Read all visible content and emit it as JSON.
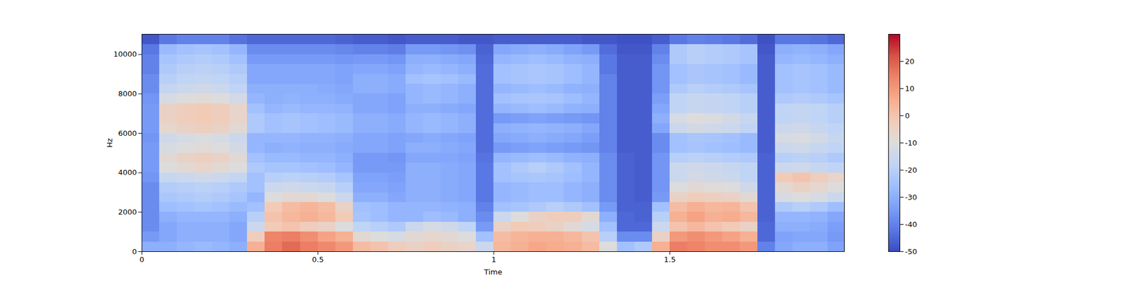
{
  "chart_data": {
    "type": "heatmap",
    "xlabel": "Time",
    "ylabel": "Hz",
    "xlim": [
      0,
      1.996
    ],
    "xticks": [
      0,
      0.5,
      1,
      1.5
    ],
    "ylim": [
      0,
      11025
    ],
    "yticks": [
      0,
      2000,
      4000,
      6000,
      8000,
      10000
    ],
    "x_bins": [
      0,
      0.05,
      0.1,
      0.15,
      0.2,
      0.25,
      0.3,
      0.35,
      0.4,
      0.45,
      0.5,
      0.55,
      0.6,
      0.65,
      0.7,
      0.75,
      0.8,
      0.85,
      0.9,
      0.95,
      1.0,
      1.05,
      1.1,
      1.15,
      1.2,
      1.25,
      1.3,
      1.35,
      1.4,
      1.45,
      1.5,
      1.55,
      1.6,
      1.65,
      1.7,
      1.75,
      1.8,
      1.85,
      1.9,
      1.95,
      1.996
    ],
    "y_bins": [
      0,
      500,
      1000,
      1500,
      2000,
      2500,
      3000,
      3500,
      4000,
      4500,
      5000,
      5500,
      6000,
      6500,
      7000,
      7500,
      8000,
      8500,
      9000,
      9500,
      10000,
      10500,
      11025
    ],
    "cells": [
      [
        -30,
        -30,
        -28,
        -27,
        -28,
        -30,
        5,
        15,
        18,
        15,
        13,
        10,
        2,
        0,
        -3,
        -5,
        -3,
        -5,
        -6,
        -15,
        3,
        5,
        7,
        6,
        5,
        2,
        -10,
        -25,
        -22,
        5,
        15,
        14,
        12,
        12,
        10,
        -40,
        -32,
        -30,
        -30,
        -33
      ],
      [
        -35,
        -32,
        -30,
        -30,
        -30,
        -32,
        -3,
        14,
        15,
        12,
        8,
        5,
        -8,
        -10,
        -12,
        -8,
        -7,
        -8,
        -10,
        -25,
        2,
        4,
        5,
        5,
        3,
        0,
        -20,
        -38,
        -38,
        -5,
        10,
        12,
        10,
        8,
        5,
        -45,
        -33,
        -32,
        -32,
        -35
      ],
      [
        -38,
        -32,
        -30,
        -30,
        -30,
        -32,
        -15,
        -2,
        0,
        -3,
        -5,
        -10,
        -18,
        -20,
        -22,
        -15,
        -12,
        -14,
        -18,
        -35,
        -5,
        -2,
        -3,
        -5,
        -8,
        -12,
        -25,
        -45,
        -45,
        -15,
        0,
        3,
        0,
        -2,
        -5,
        -45,
        -30,
        -30,
        -31,
        -34
      ],
      [
        -38,
        -30,
        -28,
        -28,
        -28,
        -30,
        -20,
        0,
        3,
        5,
        3,
        -2,
        -24,
        -26,
        -28,
        -28,
        -26,
        -27,
        -30,
        -38,
        -15,
        -10,
        -5,
        -3,
        -3,
        -8,
        -30,
        -45,
        -46,
        -20,
        5,
        8,
        5,
        6,
        3,
        -46,
        -28,
        -28,
        -29,
        -32
      ],
      [
        -38,
        -26,
        -25,
        -24,
        -25,
        -27,
        -25,
        -2,
        2,
        4,
        2,
        -5,
        -25,
        -26,
        -28,
        -28,
        -28,
        -29,
        -30,
        -40,
        -25,
        -24,
        -22,
        -20,
        -22,
        -25,
        -35,
        -46,
        -46,
        -25,
        2,
        5,
        3,
        4,
        0,
        -46,
        -22,
        -20,
        -22,
        -26
      ],
      [
        -38,
        -23,
        -22,
        -21,
        -22,
        -24,
        -28,
        -10,
        -8,
        -8,
        -10,
        -15,
        -30,
        -30,
        -32,
        -30,
        -30,
        -31,
        -32,
        -42,
        -28,
        -27,
        -26,
        -26,
        -28,
        -30,
        -38,
        -46,
        -47,
        -35,
        -5,
        -3,
        -4,
        -5,
        -8,
        -46,
        -12,
        -10,
        -12,
        -15
      ],
      [
        -38,
        -21,
        -20,
        -19,
        -20,
        -22,
        -25,
        -15,
        -14,
        -15,
        -16,
        -20,
        -32,
        -32,
        -33,
        -30,
        -30,
        -31,
        -32,
        -42,
        -28,
        -27,
        -26,
        -26,
        -28,
        -30,
        -38,
        -46,
        -47,
        -36,
        -10,
        -8,
        -9,
        -10,
        -14,
        -46,
        -8,
        -5,
        -7,
        -10
      ],
      [
        -36,
        -16,
        -15,
        -14,
        -15,
        -17,
        -25,
        -20,
        -19,
        -20,
        -21,
        -24,
        -33,
        -33,
        -34,
        -30,
        -30,
        -31,
        -32,
        -42,
        -25,
        -24,
        -23,
        -24,
        -26,
        -28,
        -38,
        -46,
        -47,
        -36,
        -15,
        -13,
        -14,
        -15,
        -18,
        -46,
        -2,
        0,
        -3,
        -6
      ],
      [
        -35,
        -10,
        -8,
        -6,
        -8,
        -10,
        -22,
        -24,
        -24,
        -25,
        -26,
        -28,
        -35,
        -35,
        -35,
        -30,
        -30,
        -31,
        -32,
        -42,
        -25,
        -22,
        -20,
        -22,
        -25,
        -28,
        -38,
        -46,
        -47,
        -36,
        -15,
        -14,
        -15,
        -16,
        -18,
        -46,
        -15,
        -14,
        -16,
        -18
      ],
      [
        -35,
        -8,
        -5,
        -4,
        -5,
        -8,
        -25,
        -27,
        -27,
        -28,
        -28,
        -30,
        -35,
        -35,
        -36,
        -32,
        -32,
        -32,
        -33,
        -43,
        -28,
        -27,
        -26,
        -27,
        -29,
        -30,
        -38,
        -46,
        -47,
        -36,
        -20,
        -19,
        -20,
        -21,
        -22,
        -46,
        -20,
        -19,
        -20,
        -22
      ],
      [
        -35,
        -12,
        -10,
        -9,
        -10,
        -13,
        -28,
        -30,
        -29,
        -30,
        -30,
        -31,
        -32,
        -32,
        -33,
        -30,
        -30,
        -31,
        -32,
        -44,
        -35,
        -34,
        -33,
        -34,
        -35,
        -36,
        -40,
        -47,
        -47,
        -38,
        -25,
        -24,
        -25,
        -26,
        -27,
        -47,
        -15,
        -14,
        -16,
        -18
      ],
      [
        -36,
        -14,
        -12,
        -11,
        -12,
        -15,
        -28,
        -28,
        -28,
        -29,
        -29,
        -30,
        -32,
        -32,
        -33,
        -32,
        -31,
        -32,
        -33,
        -44,
        -32,
        -31,
        -30,
        -31,
        -32,
        -34,
        -40,
        -47,
        -47,
        -38,
        -25,
        -23,
        -24,
        -25,
        -27,
        -47,
        -12,
        -11,
        -13,
        -16
      ],
      [
        -35,
        -7,
        -5,
        -4,
        -5,
        -8,
        -22,
        -25,
        -24,
        -25,
        -26,
        -27,
        -30,
        -30,
        -31,
        -28,
        -27,
        -28,
        -30,
        -44,
        -30,
        -29,
        -28,
        -29,
        -30,
        -32,
        -40,
        -47,
        -47,
        -32,
        -15,
        -13,
        -14,
        -15,
        -18,
        -47,
        -15,
        -14,
        -16,
        -18
      ],
      [
        -35,
        -5,
        -3,
        -2,
        -3,
        -6,
        -22,
        -25,
        -24,
        -25,
        -26,
        -27,
        -30,
        -30,
        -31,
        -28,
        -27,
        -28,
        -30,
        -44,
        -35,
        -34,
        -33,
        -34,
        -35,
        -36,
        -40,
        -47,
        -47,
        -30,
        -12,
        -10,
        -11,
        -13,
        -16,
        -47,
        -18,
        -17,
        -18,
        -20
      ],
      [
        -35,
        -5,
        -3,
        -2,
        -3,
        -6,
        -25,
        -28,
        -27,
        -28,
        -28,
        -29,
        -32,
        -32,
        -33,
        -30,
        -30,
        -31,
        -32,
        -44,
        -28,
        -27,
        -26,
        -27,
        -29,
        -30,
        -40,
        -47,
        -47,
        -32,
        -18,
        -16,
        -17,
        -18,
        -20,
        -47,
        -18,
        -17,
        -18,
        -20
      ],
      [
        -36,
        -12,
        -10,
        -9,
        -10,
        -13,
        -28,
        -30,
        -29,
        -30,
        -30,
        -31,
        -32,
        -32,
        -33,
        -28,
        -27,
        -28,
        -30,
        -44,
        -25,
        -24,
        -23,
        -24,
        -26,
        -28,
        -40,
        -47,
        -47,
        -34,
        -18,
        -16,
        -17,
        -18,
        -20,
        -47,
        -22,
        -21,
        -22,
        -24
      ],
      [
        -38,
        -17,
        -15,
        -14,
        -15,
        -18,
        -30,
        -30,
        -30,
        -30,
        -31,
        -32,
        -30,
        -30,
        -31,
        -28,
        -27,
        -28,
        -30,
        -44,
        -28,
        -27,
        -26,
        -27,
        -29,
        -30,
        -40,
        -47,
        -47,
        -36,
        -22,
        -20,
        -21,
        -22,
        -24,
        -47,
        -25,
        -24,
        -25,
        -27
      ],
      [
        -38,
        -20,
        -18,
        -17,
        -18,
        -20,
        -32,
        -32,
        -32,
        -32,
        -32,
        -33,
        -30,
        -30,
        -31,
        -25,
        -24,
        -25,
        -27,
        -44,
        -25,
        -24,
        -23,
        -24,
        -26,
        -28,
        -40,
        -47,
        -47,
        -36,
        -25,
        -23,
        -24,
        -25,
        -27,
        -47,
        -25,
        -24,
        -25,
        -27
      ],
      [
        -40,
        -22,
        -20,
        -19,
        -20,
        -22,
        -32,
        -32,
        -32,
        -32,
        -32,
        -33,
        -32,
        -32,
        -33,
        -28,
        -27,
        -28,
        -30,
        -44,
        -25,
        -24,
        -23,
        -24,
        -26,
        -28,
        -42,
        -47,
        -47,
        -36,
        -25,
        -23,
        -24,
        -25,
        -27,
        -47,
        -25,
        -24,
        -25,
        -27
      ],
      [
        -40,
        -24,
        -22,
        -21,
        -22,
        -25,
        -35,
        -35,
        -35,
        -35,
        -35,
        -36,
        -35,
        -35,
        -36,
        -30,
        -30,
        -31,
        -32,
        -45,
        -28,
        -27,
        -26,
        -27,
        -29,
        -30,
        -42,
        -47,
        -47,
        -38,
        -22,
        -20,
        -21,
        -22,
        -24,
        -47,
        -28,
        -27,
        -28,
        -30
      ],
      [
        -42,
        -27,
        -25,
        -24,
        -25,
        -28,
        -38,
        -38,
        -38,
        -38,
        -38,
        -39,
        -40,
        -40,
        -41,
        -35,
        -35,
        -36,
        -37,
        -46,
        -32,
        -31,
        -30,
        -31,
        -33,
        -35,
        -44,
        -48,
        -48,
        -40,
        -22,
        -20,
        -21,
        -22,
        -24,
        -48,
        -30,
        -29,
        -30,
        -32
      ],
      [
        -48,
        -42,
        -40,
        -40,
        -40,
        -43,
        -45,
        -45,
        -45,
        -45,
        -45,
        -46,
        -47,
        -47,
        -48,
        -47,
        -47,
        -47,
        -48,
        -48,
        -47,
        -47,
        -47,
        -47,
        -47,
        -48,
        -48,
        -49,
        -49,
        -47,
        -42,
        -40,
        -41,
        -42,
        -44,
        -49,
        -42,
        -42,
        -43,
        -45
      ]
    ],
    "colorbar": {
      "range": [
        -50,
        30
      ],
      "ticks": [
        20,
        10,
        0,
        -10,
        -20,
        -30,
        -40,
        -50
      ]
    }
  }
}
